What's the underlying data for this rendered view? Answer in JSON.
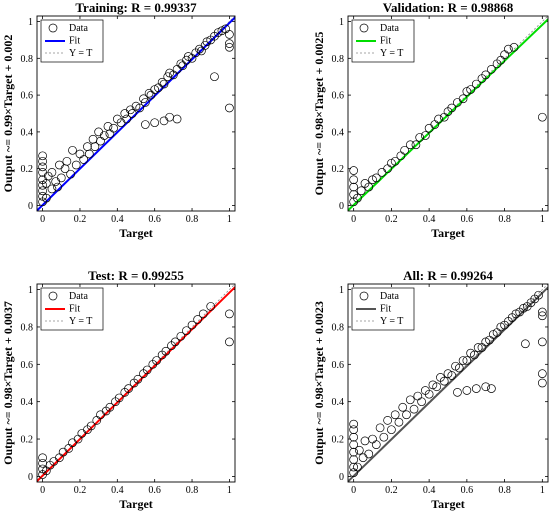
{
  "chart_data": [
    {
      "type": "scatter",
      "title": "Training: R = 0.99337",
      "xlabel": "Target",
      "ylabel": "Output ~= 0.99×Target + 0.002",
      "xlim": [
        -0.03,
        1.03
      ],
      "ylim": [
        -0.03,
        1.03
      ],
      "xticks": [
        "0",
        "0.2",
        "0.4",
        "0.6",
        "0.8",
        "1"
      ],
      "yticks": [
        "0",
        "0.2",
        "0.4",
        "0.6",
        "0.8",
        "1"
      ],
      "fit": {
        "slope": 0.99,
        "intercept": 0.002
      },
      "fit_color": "#0000ff",
      "legend": [
        "Data",
        "Fit",
        "Y = T"
      ],
      "legend_position": "top-left",
      "series": [
        {
          "points": [
            [
              0,
              0.02
            ],
            [
              0,
              0.05
            ],
            [
              0,
              0.08
            ],
            [
              0,
              0.11
            ],
            [
              0,
              0.14
            ],
            [
              0,
              0.18
            ],
            [
              0,
              0.21
            ],
            [
              0,
              0.24
            ],
            [
              0,
              0.27
            ],
            [
              0.02,
              0.04
            ],
            [
              0.02,
              0.12
            ],
            [
              0.03,
              0.16
            ],
            [
              0.05,
              0.09
            ],
            [
              0.05,
              0.18
            ],
            [
              0.07,
              0.13
            ],
            [
              0.08,
              0.1
            ],
            [
              0.09,
              0.22
            ],
            [
              0.1,
              0.15
            ],
            [
              0.12,
              0.2
            ],
            [
              0.13,
              0.24
            ],
            [
              0.15,
              0.17
            ],
            [
              0.16,
              0.3
            ],
            [
              0.18,
              0.22
            ],
            [
              0.2,
              0.28
            ],
            [
              0.22,
              0.25
            ],
            [
              0.24,
              0.32
            ],
            [
              0.25,
              0.28
            ],
            [
              0.27,
              0.36
            ],
            [
              0.28,
              0.32
            ],
            [
              0.3,
              0.4
            ],
            [
              0.31,
              0.35
            ],
            [
              0.33,
              0.38
            ],
            [
              0.35,
              0.43
            ],
            [
              0.36,
              0.39
            ],
            [
              0.38,
              0.42
            ],
            [
              0.4,
              0.47
            ],
            [
              0.42,
              0.45
            ],
            [
              0.44,
              0.5
            ],
            [
              0.45,
              0.47
            ],
            [
              0.47,
              0.52
            ],
            [
              0.48,
              0.5
            ],
            [
              0.5,
              0.54
            ],
            [
              0.52,
              0.53
            ],
            [
              0.54,
              0.58
            ],
            [
              0.55,
              0.56
            ],
            [
              0.57,
              0.61
            ],
            [
              0.58,
              0.6
            ],
            [
              0.6,
              0.63
            ],
            [
              0.62,
              0.64
            ],
            [
              0.64,
              0.67
            ],
            [
              0.65,
              0.66
            ],
            [
              0.67,
              0.7
            ],
            [
              0.68,
              0.72
            ],
            [
              0.7,
              0.71
            ],
            [
              0.72,
              0.74
            ],
            [
              0.74,
              0.77
            ],
            [
              0.75,
              0.76
            ],
            [
              0.77,
              0.79
            ],
            [
              0.78,
              0.81
            ],
            [
              0.8,
              0.8
            ],
            [
              0.82,
              0.83
            ],
            [
              0.84,
              0.85
            ],
            [
              0.85,
              0.84
            ],
            [
              0.87,
              0.87
            ],
            [
              0.88,
              0.89
            ],
            [
              0.9,
              0.9
            ],
            [
              0.92,
              0.92
            ],
            [
              0.94,
              0.94
            ],
            [
              0.96,
              0.95
            ],
            [
              0.98,
              0.96
            ],
            [
              0.55,
              0.44
            ],
            [
              0.6,
              0.45
            ],
            [
              0.65,
              0.46
            ],
            [
              0.68,
              0.48
            ],
            [
              0.72,
              0.47
            ],
            [
              0.92,
              0.7
            ],
            [
              1,
              0.53
            ],
            [
              1,
              0.86
            ],
            [
              1,
              0.88
            ],
            [
              1,
              0.93
            ]
          ]
        }
      ]
    },
    {
      "type": "scatter",
      "title": "Validation: R = 0.98868",
      "xlabel": "Target",
      "ylabel": "Output ~= 0.98×Target + 0.0025",
      "xlim": [
        -0.03,
        1.03
      ],
      "ylim": [
        -0.03,
        1.03
      ],
      "xticks": [
        "0",
        "0.2",
        "0.4",
        "0.6",
        "0.8",
        "1"
      ],
      "yticks": [
        "0",
        "0.2",
        "0.4",
        "0.6",
        "0.8",
        "1"
      ],
      "fit": {
        "slope": 0.98,
        "intercept": 0.0025
      },
      "fit_color": "#00dd00",
      "legend": [
        "Data",
        "Fit",
        "Y = T"
      ],
      "legend_position": "top-left",
      "series": [
        {
          "points": [
            [
              0,
              0.02
            ],
            [
              0,
              0.06
            ],
            [
              0,
              0.1
            ],
            [
              0,
              0.14
            ],
            [
              0,
              0.19
            ],
            [
              0.02,
              0.04
            ],
            [
              0.04,
              0.08
            ],
            [
              0.06,
              0.12
            ],
            [
              0.08,
              0.1
            ],
            [
              0.1,
              0.14
            ],
            [
              0.12,
              0.15
            ],
            [
              0.15,
              0.18
            ],
            [
              0.18,
              0.2
            ],
            [
              0.2,
              0.23
            ],
            [
              0.22,
              0.24
            ],
            [
              0.25,
              0.27
            ],
            [
              0.27,
              0.3
            ],
            [
              0.3,
              0.33
            ],
            [
              0.33,
              0.33
            ],
            [
              0.35,
              0.37
            ],
            [
              0.38,
              0.38
            ],
            [
              0.4,
              0.42
            ],
            [
              0.43,
              0.44
            ],
            [
              0.45,
              0.47
            ],
            [
              0.48,
              0.48
            ],
            [
              0.5,
              0.51
            ],
            [
              0.52,
              0.53
            ],
            [
              0.55,
              0.56
            ],
            [
              0.58,
              0.58
            ],
            [
              0.6,
              0.62
            ],
            [
              0.62,
              0.63
            ],
            [
              0.65,
              0.66
            ],
            [
              0.68,
              0.69
            ],
            [
              0.7,
              0.71
            ],
            [
              0.73,
              0.74
            ],
            [
              0.76,
              0.77
            ],
            [
              0.78,
              0.79
            ],
            [
              0.8,
              0.82
            ],
            [
              0.82,
              0.85
            ],
            [
              0.85,
              0.86
            ],
            [
              1,
              0.48
            ]
          ]
        }
      ]
    },
    {
      "type": "scatter",
      "title": "Test: R = 0.99255",
      "xlabel": "Target",
      "ylabel": "Output ~= 0.98×Target + 0.0037",
      "xlim": [
        -0.03,
        1.03
      ],
      "ylim": [
        -0.03,
        1.03
      ],
      "xticks": [
        "0",
        "0.2",
        "0.4",
        "0.6",
        "0.8",
        "1"
      ],
      "yticks": [
        "0",
        "0.2",
        "0.4",
        "0.6",
        "0.8",
        "1"
      ],
      "fit": {
        "slope": 0.98,
        "intercept": 0.0037
      },
      "fit_color": "#ff0000",
      "legend": [
        "Data",
        "Fit",
        "Y = T"
      ],
      "legend_position": "top-left",
      "series": [
        {
          "points": [
            [
              0,
              0.01
            ],
            [
              0,
              0.04
            ],
            [
              0,
              0.07
            ],
            [
              0,
              0.1
            ],
            [
              0.02,
              0.03
            ],
            [
              0.04,
              0.06
            ],
            [
              0.06,
              0.08
            ],
            [
              0.09,
              0.1
            ],
            [
              0.11,
              0.13
            ],
            [
              0.14,
              0.15
            ],
            [
              0.16,
              0.18
            ],
            [
              0.19,
              0.2
            ],
            [
              0.21,
              0.23
            ],
            [
              0.24,
              0.25
            ],
            [
              0.26,
              0.27
            ],
            [
              0.29,
              0.3
            ],
            [
              0.31,
              0.33
            ],
            [
              0.34,
              0.35
            ],
            [
              0.36,
              0.37
            ],
            [
              0.39,
              0.4
            ],
            [
              0.41,
              0.42
            ],
            [
              0.44,
              0.45
            ],
            [
              0.46,
              0.47
            ],
            [
              0.49,
              0.5
            ],
            [
              0.51,
              0.52
            ],
            [
              0.54,
              0.55
            ],
            [
              0.56,
              0.57
            ],
            [
              0.59,
              0.6
            ],
            [
              0.61,
              0.62
            ],
            [
              0.64,
              0.65
            ],
            [
              0.66,
              0.67
            ],
            [
              0.69,
              0.7
            ],
            [
              0.71,
              0.72
            ],
            [
              0.74,
              0.75
            ],
            [
              0.77,
              0.78
            ],
            [
              0.8,
              0.81
            ],
            [
              0.83,
              0.84
            ],
            [
              0.86,
              0.87
            ],
            [
              0.9,
              0.91
            ],
            [
              1,
              0.72
            ],
            [
              1,
              0.87
            ]
          ]
        }
      ]
    },
    {
      "type": "scatter",
      "title": "All: R = 0.99264",
      "xlabel": "Target",
      "ylabel": "Output ~= 0.98×Target + 0.0023",
      "xlim": [
        -0.03,
        1.03
      ],
      "ylim": [
        -0.03,
        1.03
      ],
      "xticks": [
        "0",
        "0.2",
        "0.4",
        "0.6",
        "0.8",
        "1"
      ],
      "yticks": [
        "0",
        "0.2",
        "0.4",
        "0.6",
        "0.8",
        "1"
      ],
      "fit": {
        "slope": 0.98,
        "intercept": 0.0023
      },
      "fit_color": "#555555",
      "legend": [
        "Data",
        "Fit",
        "Y = T"
      ],
      "legend_position": "top-left",
      "series": [
        {
          "points": [
            [
              0,
              0.02
            ],
            [
              0,
              0.05
            ],
            [
              0,
              0.09
            ],
            [
              0,
              0.13
            ],
            [
              0,
              0.17
            ],
            [
              0,
              0.21
            ],
            [
              0,
              0.25
            ],
            [
              0,
              0.28
            ],
            [
              0.02,
              0.05
            ],
            [
              0.03,
              0.14
            ],
            [
              0.05,
              0.1
            ],
            [
              0.06,
              0.19
            ],
            [
              0.08,
              0.12
            ],
            [
              0.1,
              0.2
            ],
            [
              0.12,
              0.17
            ],
            [
              0.14,
              0.26
            ],
            [
              0.16,
              0.21
            ],
            [
              0.18,
              0.3
            ],
            [
              0.2,
              0.25
            ],
            [
              0.22,
              0.33
            ],
            [
              0.24,
              0.29
            ],
            [
              0.26,
              0.37
            ],
            [
              0.28,
              0.33
            ],
            [
              0.3,
              0.41
            ],
            [
              0.32,
              0.36
            ],
            [
              0.34,
              0.43
            ],
            [
              0.36,
              0.4
            ],
            [
              0.38,
              0.46
            ],
            [
              0.4,
              0.44
            ],
            [
              0.42,
              0.49
            ],
            [
              0.44,
              0.48
            ],
            [
              0.46,
              0.53
            ],
            [
              0.48,
              0.51
            ],
            [
              0.5,
              0.55
            ],
            [
              0.52,
              0.54
            ],
            [
              0.54,
              0.59
            ],
            [
              0.56,
              0.58
            ],
            [
              0.58,
              0.62
            ],
            [
              0.6,
              0.62
            ],
            [
              0.62,
              0.66
            ],
            [
              0.64,
              0.65
            ],
            [
              0.66,
              0.69
            ],
            [
              0.68,
              0.69
            ],
            [
              0.7,
              0.72
            ],
            [
              0.72,
              0.73
            ],
            [
              0.74,
              0.76
            ],
            [
              0.76,
              0.77
            ],
            [
              0.78,
              0.8
            ],
            [
              0.8,
              0.81
            ],
            [
              0.82,
              0.83
            ],
            [
              0.84,
              0.85
            ],
            [
              0.86,
              0.87
            ],
            [
              0.88,
              0.88
            ],
            [
              0.9,
              0.9
            ],
            [
              0.92,
              0.91
            ],
            [
              0.94,
              0.93
            ],
            [
              0.96,
              0.95
            ],
            [
              0.98,
              0.97
            ],
            [
              0.55,
              0.45
            ],
            [
              0.6,
              0.46
            ],
            [
              0.65,
              0.47
            ],
            [
              0.7,
              0.48
            ],
            [
              0.73,
              0.47
            ],
            [
              0.91,
              0.71
            ],
            [
              1,
              0.5
            ],
            [
              1,
              0.55
            ],
            [
              1,
              0.72
            ],
            [
              1,
              0.86
            ],
            [
              1,
              0.88
            ]
          ]
        }
      ]
    }
  ]
}
